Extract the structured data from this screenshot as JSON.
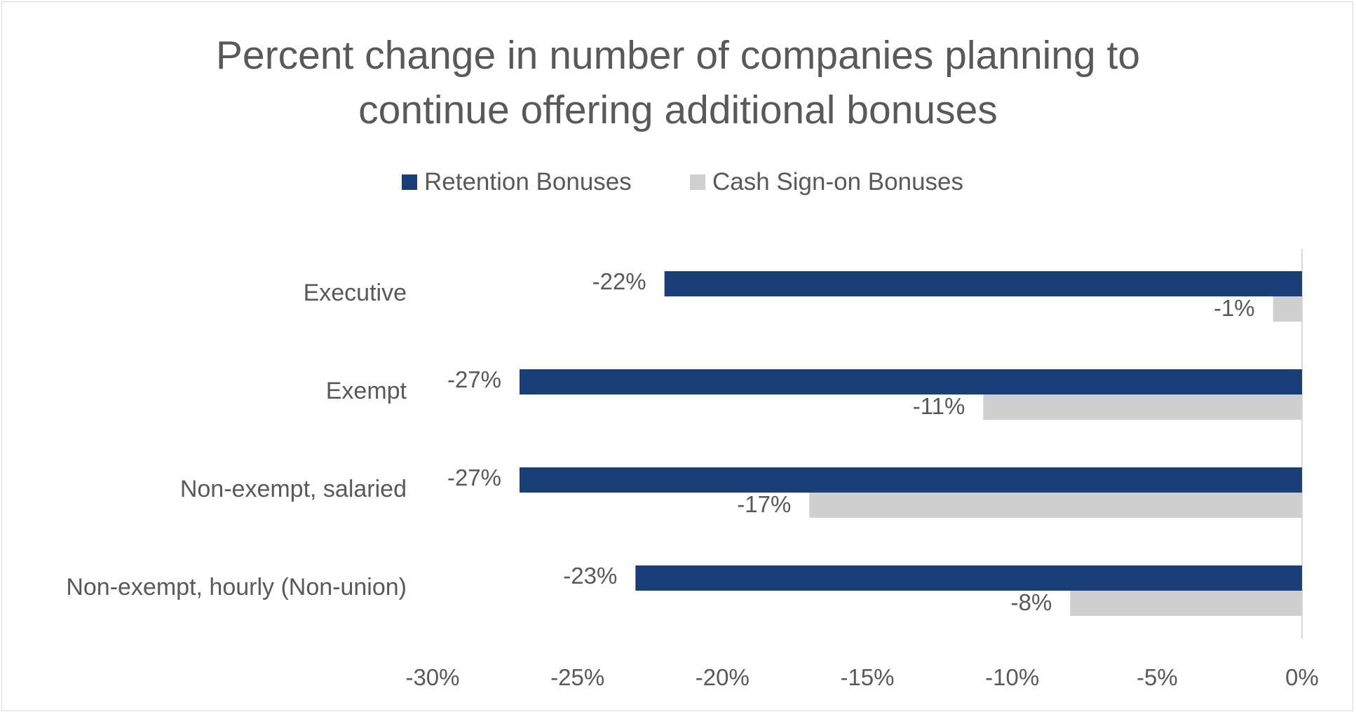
{
  "chart_data": {
    "type": "bar",
    "orientation": "horizontal",
    "title": "Percent change in number of companies planning to continue offering additional bonuses",
    "title_lines": [
      "Percent change in number of companies planning to",
      "continue offering additional bonuses"
    ],
    "categories": [
      "Executive",
      "Exempt",
      "Non-exempt, salaried",
      "Non-exempt, hourly (Non-union)"
    ],
    "series": [
      {
        "name": "Retention Bonuses",
        "color": "#1a3e78",
        "values": [
          -22,
          -27,
          -27,
          -23
        ],
        "labels": [
          "-22%",
          "-27%",
          "-27%",
          "-23%"
        ]
      },
      {
        "name": "Cash Sign-on Bonuses",
        "color": "#d0cfd0",
        "values": [
          -1,
          -11,
          -17,
          -8
        ],
        "labels": [
          "-1%",
          "-11%",
          "-17%",
          "-8%"
        ]
      }
    ],
    "xlim": [
      -30,
      0
    ],
    "xticks": [
      -30,
      -25,
      -20,
      -15,
      -10,
      -5,
      0
    ],
    "xtick_labels": [
      "-30%",
      "-25%",
      "-20%",
      "-15%",
      "-10%",
      "-5%",
      "0%"
    ],
    "legend_position": "top",
    "grid": false
  }
}
